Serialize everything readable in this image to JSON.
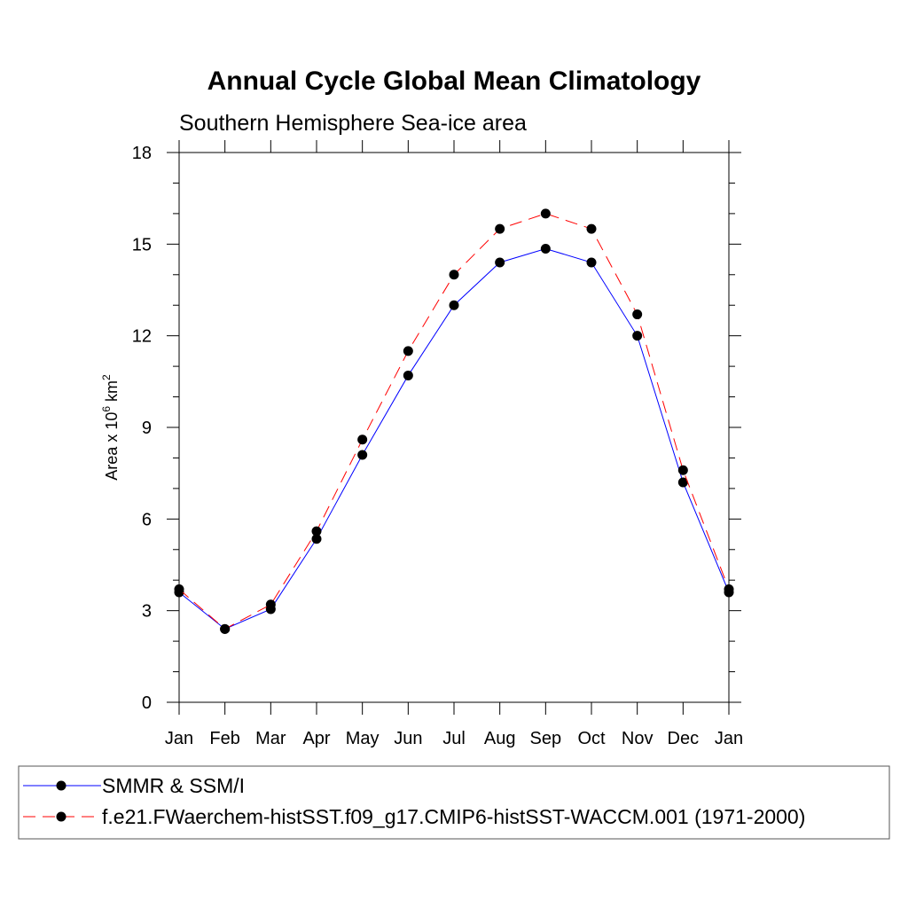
{
  "chart_data": {
    "type": "line",
    "title": "Annual Cycle Global Mean Climatology",
    "subtitle": "Southern Hemisphere Sea-ice area",
    "ylabel_main": "Area x 10",
    "ylabel_sup1": "6",
    "ylabel_mid": " km",
    "ylabel_sup2": "2",
    "xlabel": "",
    "categories": [
      "Jan",
      "Feb",
      "Mar",
      "Apr",
      "May",
      "Jun",
      "Jul",
      "Aug",
      "Sep",
      "Oct",
      "Nov",
      "Dec",
      "Jan"
    ],
    "ylim": [
      0,
      18
    ],
    "yticks": [
      "0",
      "3",
      "6",
      "9",
      "12",
      "15",
      "18"
    ],
    "grid": false,
    "legend_position": "bottom",
    "series": [
      {
        "name": "SMMR & SSM/I",
        "color": "#0000ff",
        "dash": "solid",
        "marker": "filled-circle",
        "values": [
          3.6,
          2.4,
          3.05,
          5.35,
          8.1,
          10.7,
          13.0,
          14.4,
          14.85,
          14.4,
          12.0,
          7.2,
          3.6
        ]
      },
      {
        "name": "f.e21.FWaerchem-histSST.f09_g17.CMIP6-histSST-WACCM.001 (1971-2000)",
        "color": "#ff0000",
        "dash": "dashed",
        "marker": "filled-circle",
        "values": [
          3.7,
          2.4,
          3.2,
          5.6,
          8.6,
          11.5,
          14.0,
          15.5,
          16.0,
          15.5,
          12.7,
          7.6,
          3.7
        ]
      }
    ]
  }
}
